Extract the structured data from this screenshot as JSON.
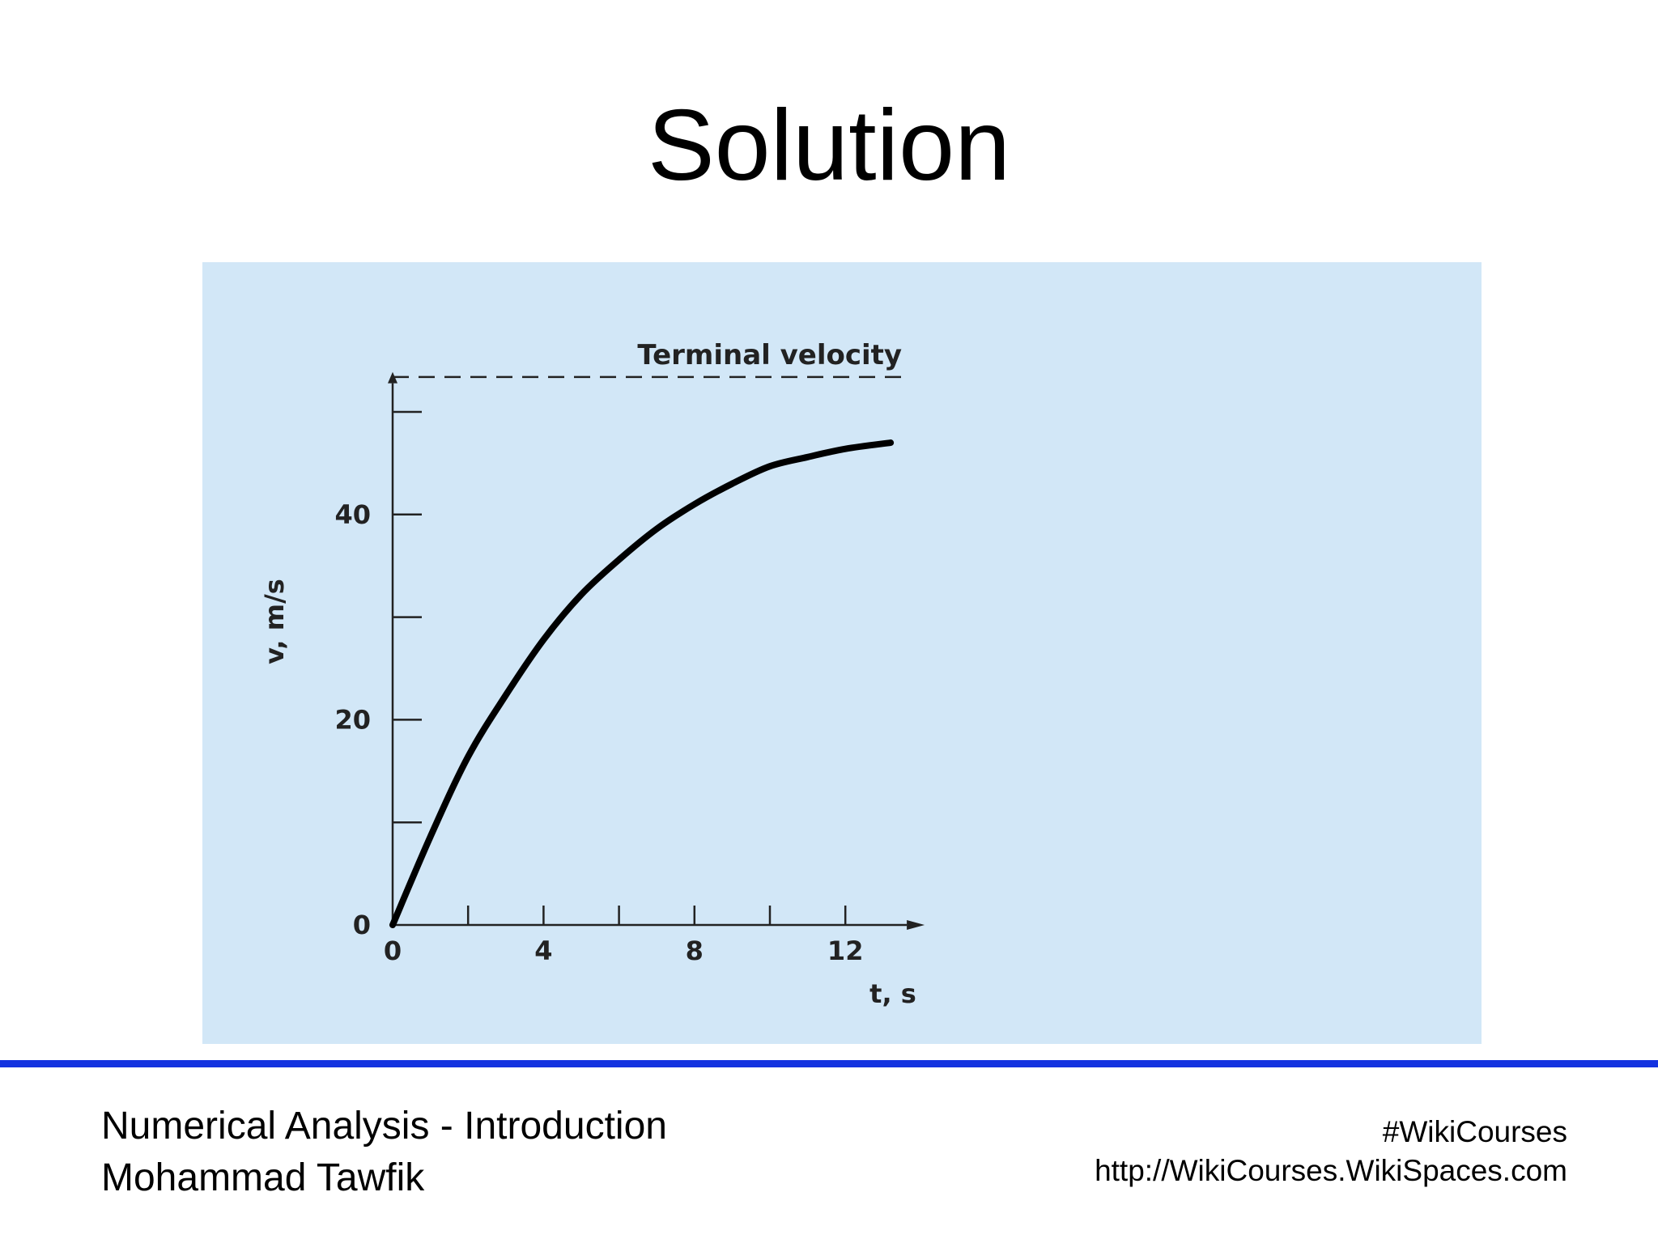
{
  "slide": {
    "title": "Solution"
  },
  "footer": {
    "left_line1": "Numerical Analysis - Introduction",
    "left_line2": "Mohammad Tawfik",
    "right_line1": "#WikiCourses",
    "right_line2": "http://WikiCourses.WikiSpaces.com"
  },
  "colors": {
    "chart_background": "#d2e7f7",
    "rule": "#1433e0",
    "curve": "#000000"
  },
  "chart_data": {
    "type": "line",
    "title": "",
    "xlabel": "t, s",
    "ylabel": "v, m/s",
    "xlim": [
      0,
      13.5
    ],
    "ylim": [
      0,
      52
    ],
    "x_ticks": [
      0,
      2,
      4,
      6,
      8,
      10,
      12
    ],
    "x_tick_labels": [
      "0",
      "",
      "4",
      "",
      "8",
      "",
      "12"
    ],
    "y_ticks": [
      0,
      10,
      20,
      30,
      40,
      50
    ],
    "y_tick_labels": [
      "0",
      "",
      "20",
      "",
      "40",
      ""
    ],
    "grid": false,
    "series": [
      {
        "x": [
          0,
          1,
          2,
          3,
          4,
          5,
          6,
          7,
          8,
          9,
          10,
          11,
          12,
          13.2
        ],
        "values": [
          0,
          8.6,
          16.4,
          22.4,
          27.8,
          32.2,
          35.6,
          38.6,
          41.0,
          43.0,
          44.7,
          45.6,
          46.4,
          47.0
        ]
      }
    ],
    "reference_line": {
      "y": 53.4,
      "style": "dashed",
      "label": "Terminal velocity"
    }
  }
}
